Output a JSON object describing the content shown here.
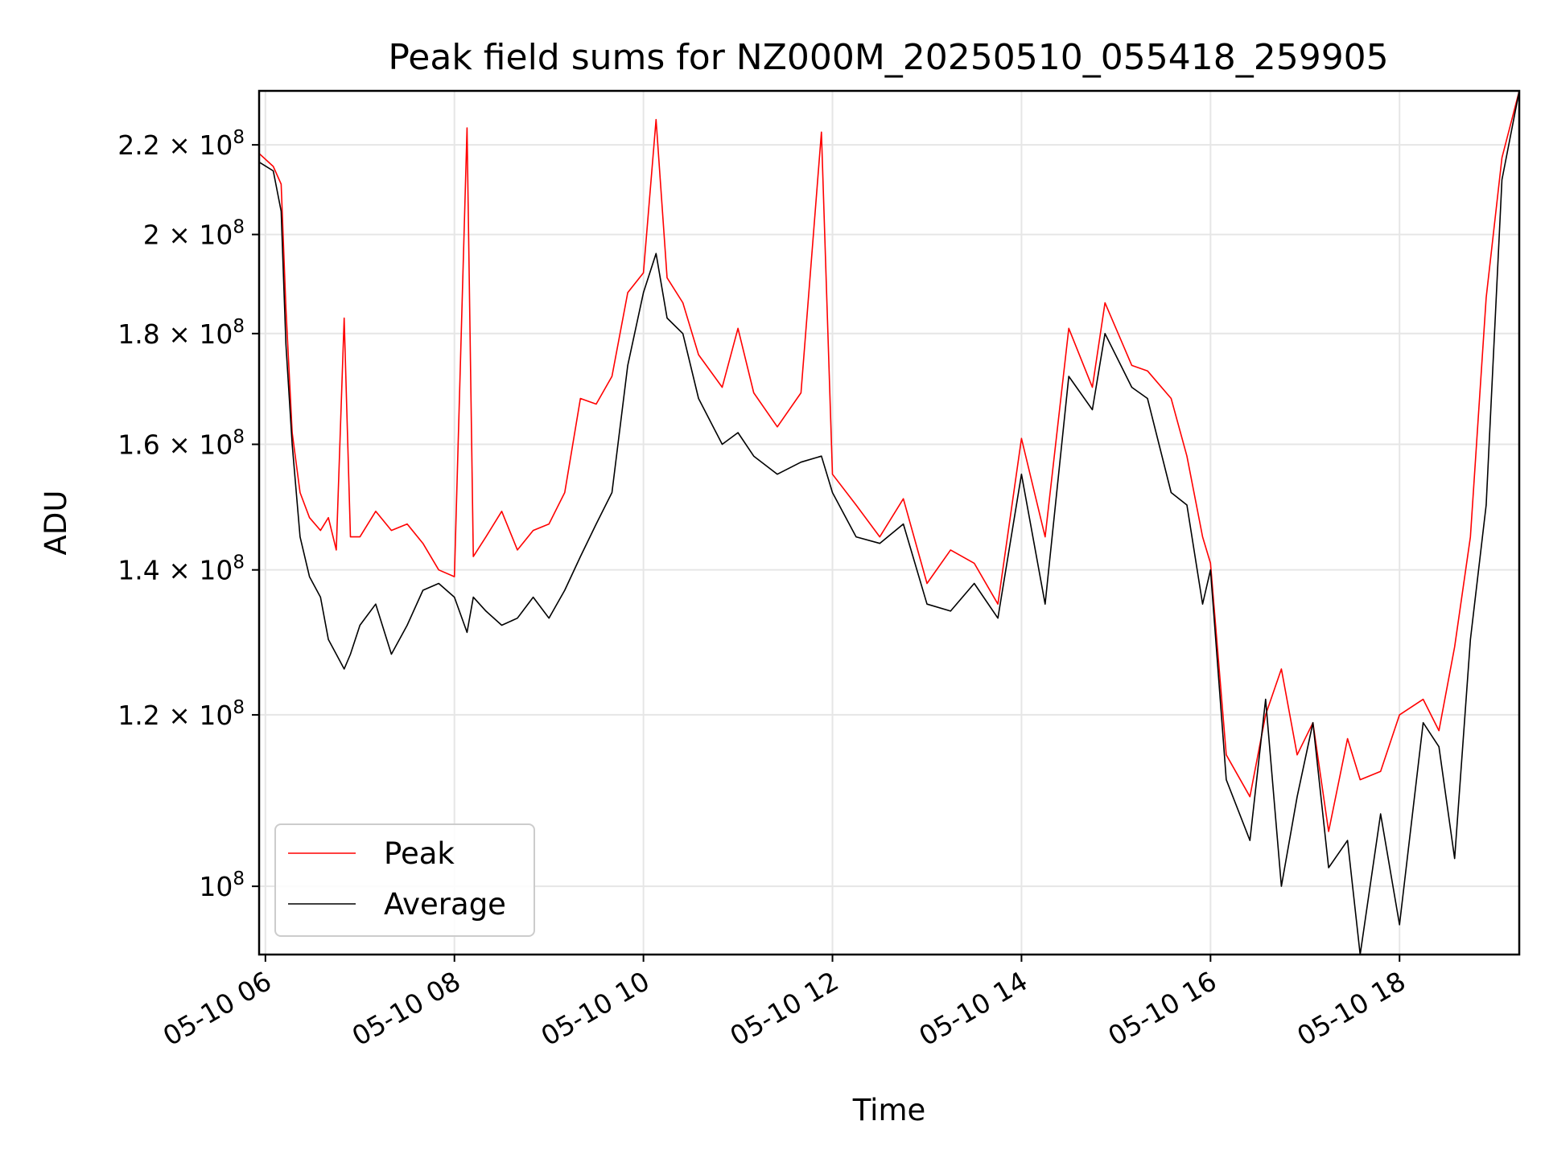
{
  "chart_data": {
    "type": "line",
    "title": "Peak field sums for NZ000M_20250510_055418_259905",
    "xlabel": "Time",
    "ylabel": "ADU",
    "y_scale": "log",
    "ylim": [
      93000000.0,
      233000000.0
    ],
    "xlim": [
      "2025-05-10 05:56",
      "2025-05-10 19:16"
    ],
    "grid": true,
    "legend_position": "lower-left",
    "x_ticks": [
      {
        "t": "2025-05-10 06:00",
        "label": "05-10 06"
      },
      {
        "t": "2025-05-10 08:00",
        "label": "05-10 08"
      },
      {
        "t": "2025-05-10 10:00",
        "label": "05-10 10"
      },
      {
        "t": "2025-05-10 12:00",
        "label": "05-10 12"
      },
      {
        "t": "2025-05-10 14:00",
        "label": "05-10 14"
      },
      {
        "t": "2025-05-10 16:00",
        "label": "05-10 16"
      },
      {
        "t": "2025-05-10 18:00",
        "label": "05-10 18"
      }
    ],
    "y_ticks": [
      {
        "value": 100000000.0,
        "base": "10",
        "exp": "8"
      },
      {
        "value": 120000000.0,
        "base": "1.2 × 10",
        "exp": "8"
      },
      {
        "value": 140000000.0,
        "base": "1.4 × 10",
        "exp": "8"
      },
      {
        "value": 160000000.0,
        "base": "1.6 × 10",
        "exp": "8"
      },
      {
        "value": 180000000.0,
        "base": "1.8 × 10",
        "exp": "8"
      },
      {
        "value": 200000000.0,
        "base": "2 × 10",
        "exp": "8"
      },
      {
        "value": 220000000.0,
        "base": "2.2 × 10",
        "exp": "8"
      }
    ],
    "series": [
      {
        "name": "Peak",
        "color": "#ff0000",
        "points": [
          [
            "2025-05-10 05:56",
            218000000.0
          ],
          [
            "2025-05-10 06:05",
            215000000.0
          ],
          [
            "2025-05-10 06:10",
            211000000.0
          ],
          [
            "2025-05-10 06:13",
            185000000.0
          ],
          [
            "2025-05-10 06:17",
            162000000.0
          ],
          [
            "2025-05-10 06:22",
            152000000.0
          ],
          [
            "2025-05-10 06:28",
            148000000.0
          ],
          [
            "2025-05-10 06:35",
            146000000.0
          ],
          [
            "2025-05-10 06:40",
            148000000.0
          ],
          [
            "2025-05-10 06:45",
            143000000.0
          ],
          [
            "2025-05-10 06:50",
            183000000.0
          ],
          [
            "2025-05-10 06:54",
            145000000.0
          ],
          [
            "2025-05-10 07:00",
            145000000.0
          ],
          [
            "2025-05-10 07:10",
            149000000.0
          ],
          [
            "2025-05-10 07:20",
            146000000.0
          ],
          [
            "2025-05-10 07:30",
            147000000.0
          ],
          [
            "2025-05-10 07:40",
            144000000.0
          ],
          [
            "2025-05-10 07:50",
            140000000.0
          ],
          [
            "2025-05-10 08:00",
            139000000.0
          ],
          [
            "2025-05-10 08:08",
            224000000.0
          ],
          [
            "2025-05-10 08:12",
            142000000.0
          ],
          [
            "2025-05-10 08:20",
            145000000.0
          ],
          [
            "2025-05-10 08:30",
            149000000.0
          ],
          [
            "2025-05-10 08:40",
            143000000.0
          ],
          [
            "2025-05-10 08:50",
            146000000.0
          ],
          [
            "2025-05-10 09:00",
            147000000.0
          ],
          [
            "2025-05-10 09:10",
            152000000.0
          ],
          [
            "2025-05-10 09:20",
            168000000.0
          ],
          [
            "2025-05-10 09:30",
            167000000.0
          ],
          [
            "2025-05-10 09:40",
            172000000.0
          ],
          [
            "2025-05-10 09:50",
            188000000.0
          ],
          [
            "2025-05-10 10:00",
            192000000.0
          ],
          [
            "2025-05-10 10:08",
            226000000.0
          ],
          [
            "2025-05-10 10:15",
            191000000.0
          ],
          [
            "2025-05-10 10:25",
            186000000.0
          ],
          [
            "2025-05-10 10:35",
            176000000.0
          ],
          [
            "2025-05-10 10:50",
            170000000.0
          ],
          [
            "2025-05-10 11:00",
            181000000.0
          ],
          [
            "2025-05-10 11:10",
            169000000.0
          ],
          [
            "2025-05-10 11:25",
            163000000.0
          ],
          [
            "2025-05-10 11:40",
            169000000.0
          ],
          [
            "2025-05-10 11:53",
            223000000.0
          ],
          [
            "2025-05-10 12:00",
            155000000.0
          ],
          [
            "2025-05-10 12:15",
            150000000.0
          ],
          [
            "2025-05-10 12:30",
            145000000.0
          ],
          [
            "2025-05-10 12:45",
            151000000.0
          ],
          [
            "2025-05-10 13:00",
            138000000.0
          ],
          [
            "2025-05-10 13:15",
            143000000.0
          ],
          [
            "2025-05-10 13:30",
            141000000.0
          ],
          [
            "2025-05-10 13:45",
            135000000.0
          ],
          [
            "2025-05-10 14:00",
            161000000.0
          ],
          [
            "2025-05-10 14:15",
            145000000.0
          ],
          [
            "2025-05-10 14:30",
            181000000.0
          ],
          [
            "2025-05-10 14:45",
            170000000.0
          ],
          [
            "2025-05-10 14:53",
            186000000.0
          ],
          [
            "2025-05-10 15:10",
            174000000.0
          ],
          [
            "2025-05-10 15:20",
            173000000.0
          ],
          [
            "2025-05-10 15:35",
            168000000.0
          ],
          [
            "2025-05-10 15:45",
            158000000.0
          ],
          [
            "2025-05-10 15:55",
            145000000.0
          ],
          [
            "2025-05-10 16:00",
            141000000.0
          ],
          [
            "2025-05-10 16:10",
            115000000.0
          ],
          [
            "2025-05-10 16:25",
            110000000.0
          ],
          [
            "2025-05-10 16:35",
            120000000.0
          ],
          [
            "2025-05-10 16:45",
            126000000.0
          ],
          [
            "2025-05-10 16:55",
            115000000.0
          ],
          [
            "2025-05-10 17:05",
            119000000.0
          ],
          [
            "2025-05-10 17:15",
            106000000.0
          ],
          [
            "2025-05-10 17:27",
            117000000.0
          ],
          [
            "2025-05-10 17:35",
            112000000.0
          ],
          [
            "2025-05-10 17:48",
            113000000.0
          ],
          [
            "2025-05-10 18:00",
            120000000.0
          ],
          [
            "2025-05-10 18:15",
            122000000.0
          ],
          [
            "2025-05-10 18:25",
            118000000.0
          ],
          [
            "2025-05-10 18:35",
            129000000.0
          ],
          [
            "2025-05-10 18:45",
            145000000.0
          ],
          [
            "2025-05-10 18:55",
            187000000.0
          ],
          [
            "2025-05-10 19:05",
            217000000.0
          ],
          [
            "2025-05-10 19:16",
            233000000.0
          ]
        ]
      },
      {
        "name": "Average",
        "color": "#000000",
        "points": [
          [
            "2025-05-10 05:56",
            216000000.0
          ],
          [
            "2025-05-10 06:05",
            214000000.0
          ],
          [
            "2025-05-10 06:10",
            205000000.0
          ],
          [
            "2025-05-10 06:13",
            178000000.0
          ],
          [
            "2025-05-10 06:17",
            160000000.0
          ],
          [
            "2025-05-10 06:22",
            145000000.0
          ],
          [
            "2025-05-10 06:28",
            139000000.0
          ],
          [
            "2025-05-10 06:35",
            136000000.0
          ],
          [
            "2025-05-10 06:40",
            130000000.0
          ],
          [
            "2025-05-10 06:45",
            128000000.0
          ],
          [
            "2025-05-10 06:50",
            126000000.0
          ],
          [
            "2025-05-10 06:54",
            128000000.0
          ],
          [
            "2025-05-10 07:00",
            132000000.0
          ],
          [
            "2025-05-10 07:10",
            135000000.0
          ],
          [
            "2025-05-10 07:20",
            128000000.0
          ],
          [
            "2025-05-10 07:30",
            132000000.0
          ],
          [
            "2025-05-10 07:40",
            137000000.0
          ],
          [
            "2025-05-10 07:50",
            138000000.0
          ],
          [
            "2025-05-10 08:00",
            136000000.0
          ],
          [
            "2025-05-10 08:08",
            131000000.0
          ],
          [
            "2025-05-10 08:12",
            136000000.0
          ],
          [
            "2025-05-10 08:20",
            134000000.0
          ],
          [
            "2025-05-10 08:30",
            132000000.0
          ],
          [
            "2025-05-10 08:40",
            133000000.0
          ],
          [
            "2025-05-10 08:50",
            136000000.0
          ],
          [
            "2025-05-10 09:00",
            133000000.0
          ],
          [
            "2025-05-10 09:10",
            137000000.0
          ],
          [
            "2025-05-10 09:20",
            142000000.0
          ],
          [
            "2025-05-10 09:30",
            147000000.0
          ],
          [
            "2025-05-10 09:40",
            152000000.0
          ],
          [
            "2025-05-10 09:50",
            174000000.0
          ],
          [
            "2025-05-10 10:00",
            188000000.0
          ],
          [
            "2025-05-10 10:08",
            196000000.0
          ],
          [
            "2025-05-10 10:15",
            183000000.0
          ],
          [
            "2025-05-10 10:25",
            180000000.0
          ],
          [
            "2025-05-10 10:35",
            168000000.0
          ],
          [
            "2025-05-10 10:50",
            160000000.0
          ],
          [
            "2025-05-10 11:00",
            162000000.0
          ],
          [
            "2025-05-10 11:10",
            158000000.0
          ],
          [
            "2025-05-10 11:25",
            155000000.0
          ],
          [
            "2025-05-10 11:40",
            157000000.0
          ],
          [
            "2025-05-10 11:53",
            158000000.0
          ],
          [
            "2025-05-10 12:00",
            152000000.0
          ],
          [
            "2025-05-10 12:15",
            145000000.0
          ],
          [
            "2025-05-10 12:30",
            144000000.0
          ],
          [
            "2025-05-10 12:45",
            147000000.0
          ],
          [
            "2025-05-10 13:00",
            135000000.0
          ],
          [
            "2025-05-10 13:15",
            134000000.0
          ],
          [
            "2025-05-10 13:30",
            138000000.0
          ],
          [
            "2025-05-10 13:45",
            133000000.0
          ],
          [
            "2025-05-10 14:00",
            155000000.0
          ],
          [
            "2025-05-10 14:15",
            135000000.0
          ],
          [
            "2025-05-10 14:30",
            172000000.0
          ],
          [
            "2025-05-10 14:45",
            166000000.0
          ],
          [
            "2025-05-10 14:53",
            180000000.0
          ],
          [
            "2025-05-10 15:10",
            170000000.0
          ],
          [
            "2025-05-10 15:20",
            168000000.0
          ],
          [
            "2025-05-10 15:35",
            152000000.0
          ],
          [
            "2025-05-10 15:45",
            150000000.0
          ],
          [
            "2025-05-10 15:55",
            135000000.0
          ],
          [
            "2025-05-10 16:00",
            140000000.0
          ],
          [
            "2025-05-10 16:10",
            112000000.0
          ],
          [
            "2025-05-10 16:25",
            105000000.0
          ],
          [
            "2025-05-10 16:35",
            122000000.0
          ],
          [
            "2025-05-10 16:45",
            100000000.0
          ],
          [
            "2025-05-10 16:55",
            110000000.0
          ],
          [
            "2025-05-10 17:05",
            119000000.0
          ],
          [
            "2025-05-10 17:15",
            102000000.0
          ],
          [
            "2025-05-10 17:27",
            105000000.0
          ],
          [
            "2025-05-10 17:35",
            93000000.0
          ],
          [
            "2025-05-10 17:48",
            108000000.0
          ],
          [
            "2025-05-10 18:00",
            96000000.0
          ],
          [
            "2025-05-10 18:15",
            119000000.0
          ],
          [
            "2025-05-10 18:25",
            116000000.0
          ],
          [
            "2025-05-10 18:35",
            103000000.0
          ],
          [
            "2025-05-10 18:45",
            130000000.0
          ],
          [
            "2025-05-10 18:55",
            150000000.0
          ],
          [
            "2025-05-10 19:05",
            212000000.0
          ],
          [
            "2025-05-10 19:16",
            233000000.0
          ]
        ]
      }
    ]
  }
}
